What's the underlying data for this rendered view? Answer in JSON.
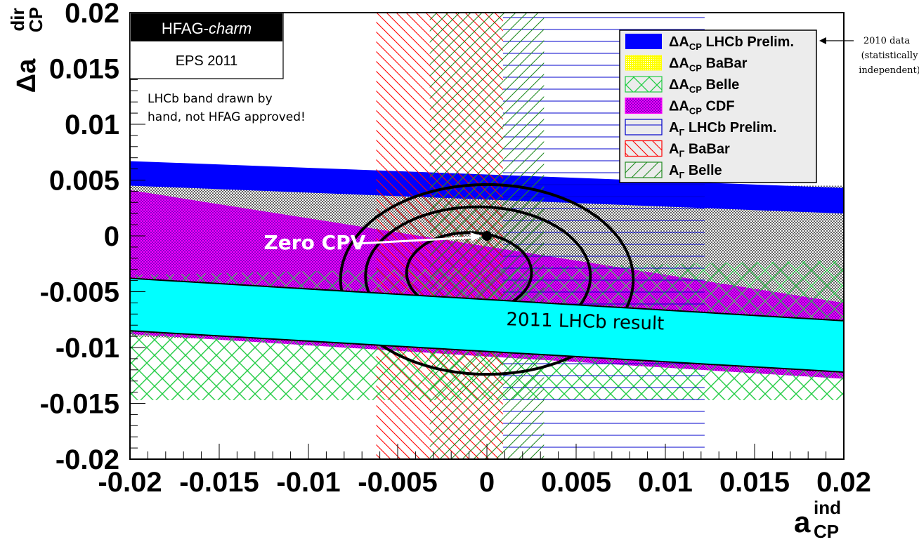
{
  "chart_data": {
    "type": "area",
    "x_axis": {
      "label_main": "a",
      "label_sup": "ind",
      "label_sub": "CP",
      "range": [
        -0.02,
        0.02
      ],
      "ticks": [
        "-0.02",
        "-0.015",
        "-0.01",
        "-0.005",
        "0",
        "0.005",
        "0.01",
        "0.015",
        "0.02"
      ],
      "tick_values": [
        -0.02,
        -0.015,
        -0.01,
        -0.005,
        0,
        0.005,
        0.01,
        0.015,
        0.02
      ]
    },
    "y_axis": {
      "label_main": "Δa",
      "label_sup": "dir",
      "label_sub": "CP",
      "range": [
        -0.02,
        0.02
      ],
      "ticks": [
        "0.02",
        "0.015",
        "0.01",
        "0.005",
        "0",
        "-0.005",
        "-0.01",
        "-0.015",
        "-0.02"
      ],
      "tick_values": [
        0.02,
        0.015,
        0.01,
        0.005,
        0,
        -0.005,
        -0.01,
        -0.015,
        -0.02
      ]
    },
    "header_box": {
      "title_a": "HFAG-",
      "title_b": "charm",
      "subtitle": "EPS  2011"
    },
    "note_lines": [
      "LHCb band drawn by",
      "hand, not HFAG approved!"
    ],
    "legend": [
      {
        "prefix": "ΔA",
        "sub": "CP",
        "label": " LHCb Prelim.",
        "color": "#0000ff"
      },
      {
        "prefix": "ΔA",
        "sub": "CP",
        "label": " BaBar",
        "color": "#ffff00"
      },
      {
        "prefix": "ΔA",
        "sub": "CP",
        "label": " Belle",
        "color": "#22cc44"
      },
      {
        "prefix": "ΔA",
        "sub": "CP",
        "label": " CDF",
        "color": "#ff00ff"
      },
      {
        "prefix": "A",
        "sub": "Γ",
        "label": " LHCb Prelim.",
        "color": "#0000cc"
      },
      {
        "prefix": "A",
        "sub": "Γ",
        "label": " BaBar",
        "color": "#ff0000"
      },
      {
        "prefix": "A",
        "sub": "Γ",
        "label": " Belle",
        "color": "#228b22"
      }
    ],
    "side_note": [
      "2010 data",
      "(statistically",
      "independent)"
    ],
    "bands": {
      "dacp_lhcb": {
        "at_x_min": [
          0.0045,
          0.0067
        ],
        "at_x_max": [
          0.002,
          0.0043
        ],
        "color": "#0000ff"
      },
      "dacp_babar": {
        "at_x_min": [
          -0.009,
          0.0045
        ],
        "at_x_max": [
          -0.011,
          0.0045
        ],
        "color": "#ffff00"
      },
      "dacp_belle": {
        "at_x_min": [
          -0.0147,
          -0.0035
        ],
        "at_x_max": [
          -0.0147,
          -0.0022
        ],
        "color": "#22cc44"
      },
      "dacp_cdf": {
        "at_x_min": [
          -0.0088,
          0.0041
        ],
        "at_x_max": [
          -0.0128,
          -0.006
        ],
        "color": "#b000e0"
      },
      "ag_lhcb": {
        "x_range": [
          0.0009,
          0.0122
        ],
        "color": "#0000cc"
      },
      "ag_babar": {
        "x_range": [
          -0.0062,
          0.0009
        ],
        "color": "#ff0000"
      },
      "ag_belle": {
        "x_range": [
          -0.0032,
          0.0032
        ],
        "color": "#228b22"
      },
      "lhcb_2011": {
        "at_x_min": [
          -0.0085,
          -0.0038
        ],
        "at_x_max": [
          -0.0122,
          -0.0076
        ],
        "color": "#00ffff"
      }
    },
    "contours": [
      {
        "cx": -0.001,
        "cy": -0.0033,
        "rx": 0.0035,
        "ry": 0.0036
      },
      {
        "cx": -0.0005,
        "cy": -0.0036,
        "rx": 0.0063,
        "ry": 0.0062
      },
      {
        "cx": 0.0,
        "cy": -0.0039,
        "rx": 0.0082,
        "ry": 0.0085
      }
    ],
    "zero_point": {
      "x": 0.0,
      "y": 0.0
    },
    "annotations": {
      "zero_cpv": {
        "text": "Zero CPV",
        "x": -0.0125,
        "y": -0.0012,
        "arrow_to": [
          -0.0003,
          0.0
        ]
      },
      "lhcb_result": {
        "text": "2011 LHCb result",
        "x": 0.0055,
        "y": -0.0082
      }
    }
  }
}
